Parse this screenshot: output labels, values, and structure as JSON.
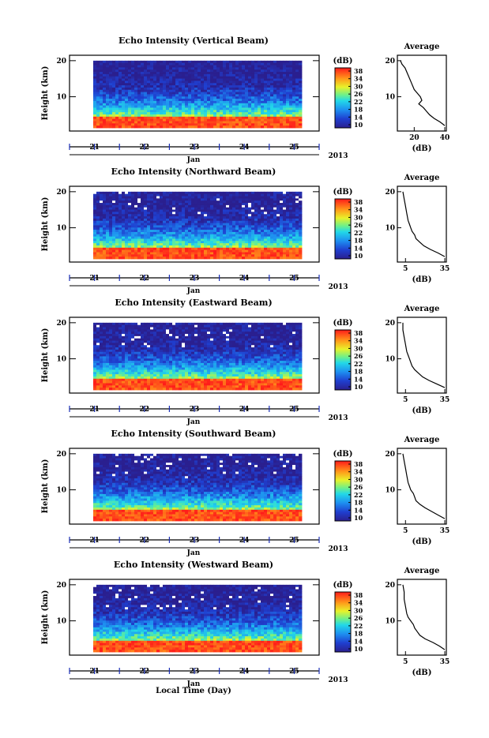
{
  "chart_data": [
    {
      "type": "heatmap",
      "title": "Echo Intensity (Vertical Beam)",
      "ylabel": "Height (km)",
      "yticks": [
        "10",
        "20"
      ],
      "ylim": [
        2,
        20
      ],
      "x_ticks": [
        "21",
        "22",
        "23",
        "24",
        "25"
      ],
      "x_month": "Jan",
      "x_year": "2013",
      "colorbar_unit": "(dB)",
      "colorbar_ticks": [
        "38",
        "34",
        "30",
        "26",
        "22",
        "18",
        "14",
        "10"
      ],
      "colorbar_range": [
        10,
        38
      ],
      "average": {
        "title": "Average",
        "xlabel": "(dB)",
        "xticks": [
          "20",
          "40"
        ],
        "xlim": [
          10,
          40
        ],
        "ylim": [
          2,
          20
        ],
        "profile": [
          [
            40,
            2
          ],
          [
            37,
            3
          ],
          [
            33,
            4
          ],
          [
            30,
            5
          ],
          [
            28,
            6
          ],
          [
            26,
            7
          ],
          [
            23,
            8
          ],
          [
            25,
            9
          ],
          [
            24,
            10
          ],
          [
            22,
            11
          ],
          [
            20,
            12
          ],
          [
            18,
            14
          ],
          [
            16,
            16
          ],
          [
            14,
            18
          ],
          [
            12,
            19
          ],
          [
            11,
            20
          ]
        ]
      }
    },
    {
      "type": "heatmap",
      "title": "Echo Intensity (Northward Beam)",
      "ylabel": "Height (km)",
      "yticks": [
        "10",
        "20"
      ],
      "ylim": [
        2,
        20
      ],
      "x_ticks": [
        "21",
        "22",
        "23",
        "24",
        "25"
      ],
      "x_month": "Jan",
      "x_year": "2013",
      "colorbar_unit": "(dB)",
      "colorbar_ticks": [
        "38",
        "34",
        "30",
        "26",
        "22",
        "18",
        "14",
        "10"
      ],
      "colorbar_range": [
        10,
        38
      ],
      "average": {
        "title": "Average",
        "xlabel": "(dB)",
        "xticks": [
          "5",
          "35"
        ],
        "xlim": [
          0,
          35
        ],
        "ylim": [
          2,
          20
        ],
        "profile": [
          [
            35,
            2
          ],
          [
            30,
            3
          ],
          [
            24,
            4
          ],
          [
            19,
            5
          ],
          [
            16,
            6
          ],
          [
            13,
            7
          ],
          [
            12,
            8
          ],
          [
            10,
            9
          ],
          [
            9,
            10
          ],
          [
            8,
            11
          ],
          [
            7,
            12
          ],
          [
            6,
            14
          ],
          [
            5,
            16
          ],
          [
            4,
            18
          ],
          [
            3,
            20
          ]
        ]
      }
    },
    {
      "type": "heatmap",
      "title": "Echo Intensity (Eastward Beam)",
      "ylabel": "Height (km)",
      "yticks": [
        "10",
        "20"
      ],
      "ylim": [
        2,
        20
      ],
      "x_ticks": [
        "21",
        "22",
        "23",
        "24",
        "25"
      ],
      "x_month": "Jan",
      "x_year": "2013",
      "colorbar_unit": "(dB)",
      "colorbar_ticks": [
        "38",
        "34",
        "30",
        "26",
        "22",
        "18",
        "14",
        "10"
      ],
      "colorbar_range": [
        10,
        38
      ],
      "average": {
        "title": "Average",
        "xlabel": "(dB)",
        "xticks": [
          "5",
          "35"
        ],
        "xlim": [
          0,
          35
        ],
        "ylim": [
          2,
          20
        ],
        "profile": [
          [
            35,
            2
          ],
          [
            29,
            3
          ],
          [
            23,
            4
          ],
          [
            18,
            5
          ],
          [
            15,
            6
          ],
          [
            12,
            7
          ],
          [
            10,
            8
          ],
          [
            9,
            9
          ],
          [
            8,
            10
          ],
          [
            7,
            11
          ],
          [
            6,
            12
          ],
          [
            5,
            14
          ],
          [
            4,
            16
          ],
          [
            3,
            18
          ],
          [
            3,
            20
          ]
        ]
      }
    },
    {
      "type": "heatmap",
      "title": "Echo Intensity (Southward Beam)",
      "ylabel": "Height (km)",
      "yticks": [
        "10",
        "20"
      ],
      "ylim": [
        2,
        20
      ],
      "x_ticks": [
        "21",
        "22",
        "23",
        "24",
        "25"
      ],
      "x_month": "Jan",
      "x_year": "2013",
      "colorbar_unit": "(dB)",
      "colorbar_ticks": [
        "38",
        "34",
        "30",
        "26",
        "22",
        "18",
        "14",
        "10"
      ],
      "colorbar_range": [
        10,
        38
      ],
      "average": {
        "title": "Average",
        "xlabel": "(dB)",
        "xticks": [
          "5",
          "35"
        ],
        "xlim": [
          0,
          35
        ],
        "ylim": [
          2,
          20
        ],
        "profile": [
          [
            35,
            2
          ],
          [
            30,
            3
          ],
          [
            25,
            4
          ],
          [
            20,
            5
          ],
          [
            16,
            6
          ],
          [
            13,
            7
          ],
          [
            12,
            8
          ],
          [
            11,
            9
          ],
          [
            9,
            10
          ],
          [
            8,
            11
          ],
          [
            7,
            12
          ],
          [
            6,
            14
          ],
          [
            5,
            16
          ],
          [
            4,
            18
          ],
          [
            3,
            20
          ]
        ]
      }
    },
    {
      "type": "heatmap",
      "title": "Echo Intensity (Westward Beam)",
      "ylabel": "Height (km)",
      "yticks": [
        "10",
        "20"
      ],
      "ylim": [
        2,
        20
      ],
      "x_ticks": [
        "21",
        "22",
        "23",
        "24",
        "25"
      ],
      "x_month": "Jan",
      "x_year": "2013",
      "colorbar_unit": "(dB)",
      "colorbar_ticks": [
        "38",
        "34",
        "30",
        "26",
        "22",
        "18",
        "14",
        "10"
      ],
      "colorbar_range": [
        10,
        38
      ],
      "average": {
        "title": "Average",
        "xlabel": "(dB)",
        "xticks": [
          "5",
          "35"
        ],
        "xlim": [
          0,
          35
        ],
        "ylim": [
          2,
          20
        ],
        "profile": [
          [
            35,
            2
          ],
          [
            31,
            3
          ],
          [
            26,
            4
          ],
          [
            20,
            5
          ],
          [
            16,
            6
          ],
          [
            14,
            7
          ],
          [
            12,
            8
          ],
          [
            11,
            9
          ],
          [
            9,
            10
          ],
          [
            7,
            11
          ],
          [
            6,
            12
          ],
          [
            5,
            14
          ],
          [
            4,
            16
          ],
          [
            4,
            18
          ],
          [
            3,
            20
          ]
        ]
      }
    }
  ],
  "footer": {
    "xlabel": "Local Time (Day)"
  }
}
